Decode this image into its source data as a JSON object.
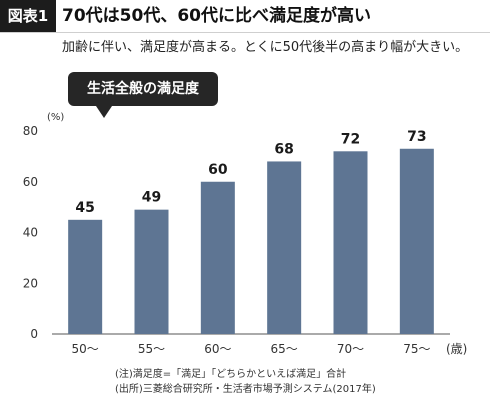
{
  "header": {
    "label": "図表1",
    "title": "70代は50代、60代に比べ満足度が高い",
    "subtitle": "加齢に伴い、満足度が高まる。とくに50代後半の高まり幅が大きい。"
  },
  "callout": "生活全般の満足度",
  "notes": {
    "note1": "(注)満足度=「満足」「どちらかといえば満足」合計",
    "note2": "(出所)三菱総合研究所・生活者市場予測システム(2017年)"
  },
  "chart_data": {
    "type": "bar",
    "categories": [
      "50〜",
      "55〜",
      "60〜",
      "65〜",
      "70〜",
      "75〜"
    ],
    "values": [
      45,
      49,
      60,
      68,
      72,
      73
    ],
    "title": "生活全般の満足度",
    "ylabel": "(%)",
    "xlabel": "(歳)",
    "ylim": [
      0,
      80
    ],
    "yticks": [
      0,
      20,
      40,
      60,
      80
    ],
    "grid": false,
    "bar_color": "#5e7593"
  }
}
